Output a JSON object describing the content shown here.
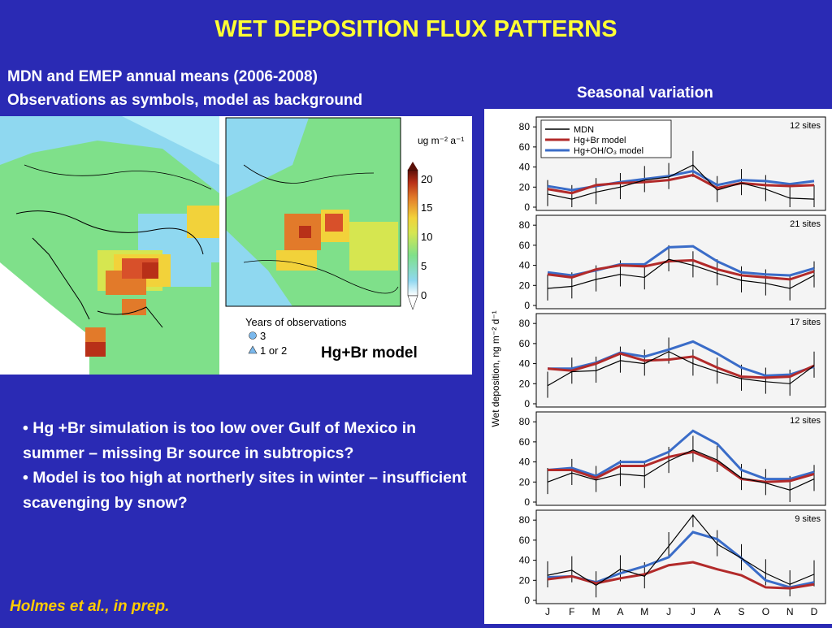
{
  "slide": {
    "title": "WET DEPOSITION FLUX PATTERNS",
    "subtitle_line1": "MDN and EMEP annual means  (2006-2008)",
    "subtitle_line2": "Observations as symbols, model as background",
    "seasonal_title": "Seasonal variation",
    "bullets": [
      "• Hg +Br simulation is too low over Gulf of Mexico in summer – missing Br source in subtropics?",
      "• Model is too high at northerly sites in winter – insufficient scavenging by snow?"
    ],
    "citation": "Holmes et al., in prep."
  },
  "maps": {
    "colorbar_unit": "ug m⁻² a⁻¹",
    "colorbar_ticks": [
      "20",
      "15",
      "10",
      "5",
      "0"
    ],
    "years_title": "Years of observations",
    "legend_circle": "3",
    "legend_triangle": "1 or 2",
    "model_label": "Hg+Br model",
    "colors": {
      "low": "#8fd8f0",
      "mid": "#7fe08a",
      "high": "#f2d23a",
      "peak": "#d8502a",
      "max": "#7a1a0a"
    }
  },
  "chart_data": {
    "type": "line",
    "x": [
      "J",
      "F",
      "M",
      "A",
      "M",
      "J",
      "J",
      "A",
      "S",
      "O",
      "N",
      "D"
    ],
    "ylabel": "Wet deposition, ng m⁻² d⁻¹",
    "legend": [
      "MDN",
      "Hg+Br model",
      "Hg+OH/O₃ model"
    ],
    "series_colors": {
      "MDN": "#000000",
      "Hg+Br model": "#b22a2a",
      "Hg+OH/O₃ model": "#3a6cc8"
    },
    "panels": [
      {
        "sites": "12 sites",
        "yticks": [
          "80",
          "60",
          "40",
          "20",
          "0"
        ],
        "ylim": [
          0,
          85
        ],
        "MDN": [
          13,
          8,
          15,
          20,
          27,
          30,
          42,
          17,
          24,
          18,
          9,
          8
        ],
        "HgBr": [
          18,
          14,
          22,
          24,
          25,
          27,
          32,
          19,
          24,
          22,
          21,
          22
        ],
        "HgOH": [
          21,
          17,
          21,
          25,
          28,
          31,
          36,
          22,
          27,
          26,
          23,
          26
        ]
      },
      {
        "sites": "21 sites",
        "yticks": [
          "80",
          "60",
          "40",
          "20",
          "0"
        ],
        "ylim": [
          0,
          85
        ],
        "MDN": [
          17,
          19,
          26,
          31,
          28,
          46,
          40,
          32,
          25,
          22,
          17,
          30
        ],
        "HgBr": [
          31,
          28,
          36,
          40,
          39,
          44,
          45,
          36,
          30,
          28,
          26,
          34
        ],
        "HgOH": [
          33,
          30,
          35,
          41,
          41,
          58,
          59,
          44,
          33,
          31,
          30,
          37
        ]
      },
      {
        "sites": "17 sites",
        "yticks": [
          "80",
          "60",
          "40",
          "20",
          "0"
        ],
        "ylim": [
          0,
          85
        ],
        "MDN": [
          18,
          32,
          33,
          43,
          40,
          52,
          40,
          32,
          25,
          22,
          20,
          38
        ],
        "HgBr": [
          35,
          33,
          40,
          50,
          43,
          44,
          47,
          36,
          27,
          26,
          27,
          38
        ],
        "HgOH": [
          35,
          35,
          41,
          51,
          47,
          54,
          62,
          50,
          36,
          28,
          29,
          37
        ]
      },
      {
        "sites": "12 sites",
        "yticks": [
          "80",
          "60",
          "40",
          "20",
          "0"
        ],
        "ylim": [
          0,
          85
        ],
        "MDN": [
          20,
          29,
          22,
          28,
          26,
          41,
          52,
          42,
          24,
          19,
          12,
          23
        ],
        "HgBr": [
          32,
          32,
          24,
          36,
          36,
          45,
          50,
          40,
          23,
          20,
          21,
          28
        ],
        "HgOH": [
          32,
          34,
          26,
          40,
          40,
          50,
          71,
          58,
          32,
          23,
          23,
          30
        ]
      },
      {
        "sites": "9 sites",
        "yticks": [
          "80",
          "60",
          "40",
          "20",
          "0"
        ],
        "ylim": [
          0,
          85
        ],
        "MDN": [
          25,
          30,
          15,
          31,
          24,
          54,
          85,
          56,
          42,
          27,
          16,
          26
        ],
        "HgBr": [
          21,
          24,
          17,
          22,
          26,
          35,
          38,
          31,
          25,
          13,
          12,
          16
        ],
        "HgOH": [
          23,
          24,
          18,
          27,
          34,
          43,
          68,
          61,
          42,
          20,
          13,
          18
        ]
      }
    ]
  }
}
